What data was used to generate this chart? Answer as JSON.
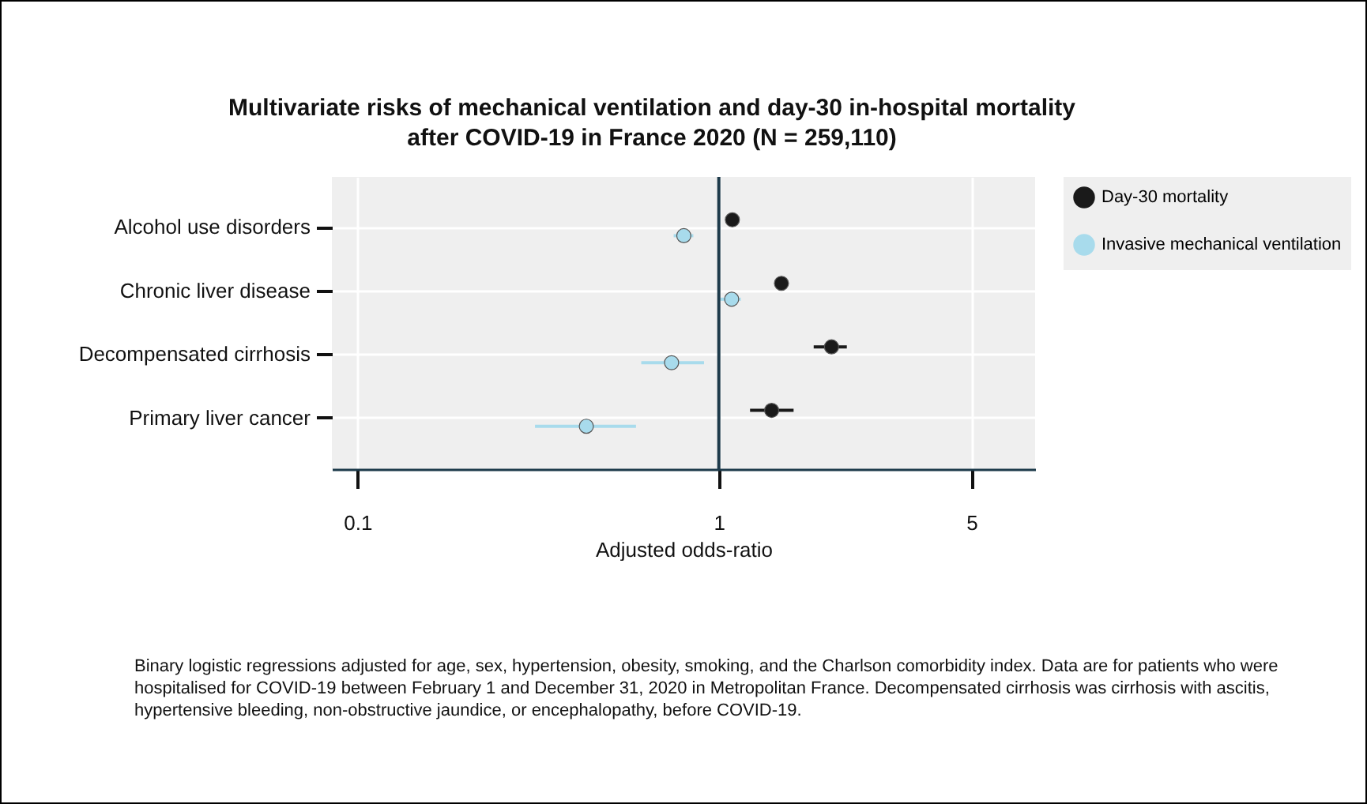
{
  "chart_data": {
    "type": "scatter",
    "orientation": "horizontal",
    "title": "Multivariate risks of mechanical ventilation and day-30 in-hospital mortality\nafter COVID-19 in France 2020 (N = 259,110)",
    "xlabel": "Adjusted odds-ratio",
    "categories": [
      "Alcohol use disorders",
      "Chronic liver disease",
      "Decompensated cirrhosis",
      "Primary liver cancer"
    ],
    "series": [
      {
        "name": "Day-30 mortality",
        "color": "#1a1a1a",
        "values": [
          1.09,
          1.49,
          2.05,
          1.4
        ],
        "errors": [
          [
            1.05,
            1.13
          ],
          [
            1.43,
            1.56
          ],
          [
            1.83,
            2.26
          ],
          [
            1.22,
            1.61
          ]
        ]
      },
      {
        "name": "Invasive mechanical ventilation",
        "color": "#a8dbec",
        "values": [
          0.8,
          1.085,
          0.74,
          0.43
        ],
        "errors": [
          [
            0.75,
            0.85
          ],
          [
            1.01,
            1.15
          ],
          [
            0.61,
            0.91
          ],
          [
            0.31,
            0.59
          ]
        ]
      }
    ],
    "log": "x",
    "xlim": [
      0.085,
      7.5
    ],
    "xticks": [
      0.1,
      1,
      5
    ],
    "grid": true,
    "legend": "top right",
    "marker": "circle",
    "ref_lines": [
      {
        "axis": "x",
        "value": 1,
        "color": "#1d3a4a"
      }
    ],
    "annotations": [
      "Binary logistic regressions adjusted for age, sex, hypertension, obesity, smoking, and the Charlson comorbidity index. Data are for patients who were hospitalised for COVID-19 between February 1 and December 31, 2020 in Metropolitan France. Decompensated cirrhosis was cirrhosis with ascitis, hypertensive bleeding, non-obstructive jaundice, or encephalopathy, before COVID-19."
    ]
  }
}
